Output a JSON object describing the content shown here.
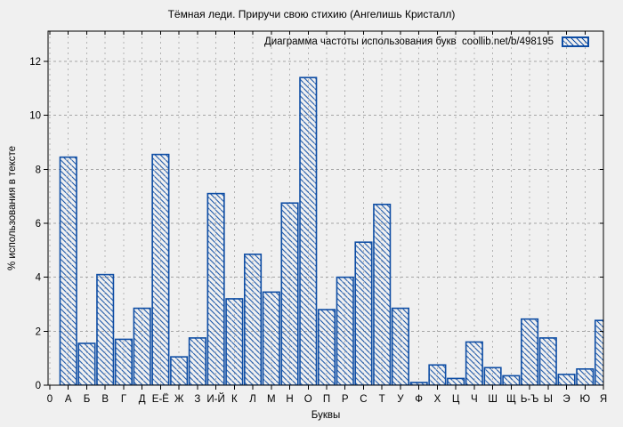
{
  "chart_data": {
    "type": "bar",
    "title": "Тёмная леди. Приручи свою стихию (Ангелишь Кристалл)",
    "legend": "Диаграмма частоты использования букв  coollib.net/b/498195",
    "xlabel": "Буквы",
    "ylabel": "% использования в тексте",
    "categories": [
      "0",
      "А",
      "Б",
      "В",
      "Г",
      "Д",
      "Е-Ё",
      "Ж",
      "З",
      "И-Й",
      "К",
      "Л",
      "М",
      "Н",
      "О",
      "П",
      "Р",
      "С",
      "Т",
      "У",
      "Ф",
      "Х",
      "Ц",
      "Ч",
      "Ш",
      "Щ",
      "Ь-Ъ",
      "Ы",
      "Э",
      "Ю",
      "Я"
    ],
    "values": [
      0,
      8.45,
      1.55,
      4.1,
      1.7,
      2.85,
      8.55,
      1.05,
      1.75,
      7.1,
      3.2,
      4.85,
      3.45,
      6.75,
      11.4,
      2.8,
      4.0,
      5.3,
      6.7,
      2.85,
      0.1,
      0.75,
      0.25,
      1.6,
      0.65,
      0.35,
      2.45,
      1.75,
      0.4,
      0.6,
      2.4
    ],
    "yticks": [
      0,
      2,
      4,
      6,
      8,
      10,
      12
    ],
    "ylim": [
      0,
      13.12
    ],
    "grid": "on",
    "legend_position": "top-right-inside",
    "bar_color": "#0e4da4",
    "h_grid_color": "#a6a6a6",
    "v_grid_color": "#b3b3b3",
    "axis_color": "#000000",
    "background": "#f0f0f0"
  }
}
